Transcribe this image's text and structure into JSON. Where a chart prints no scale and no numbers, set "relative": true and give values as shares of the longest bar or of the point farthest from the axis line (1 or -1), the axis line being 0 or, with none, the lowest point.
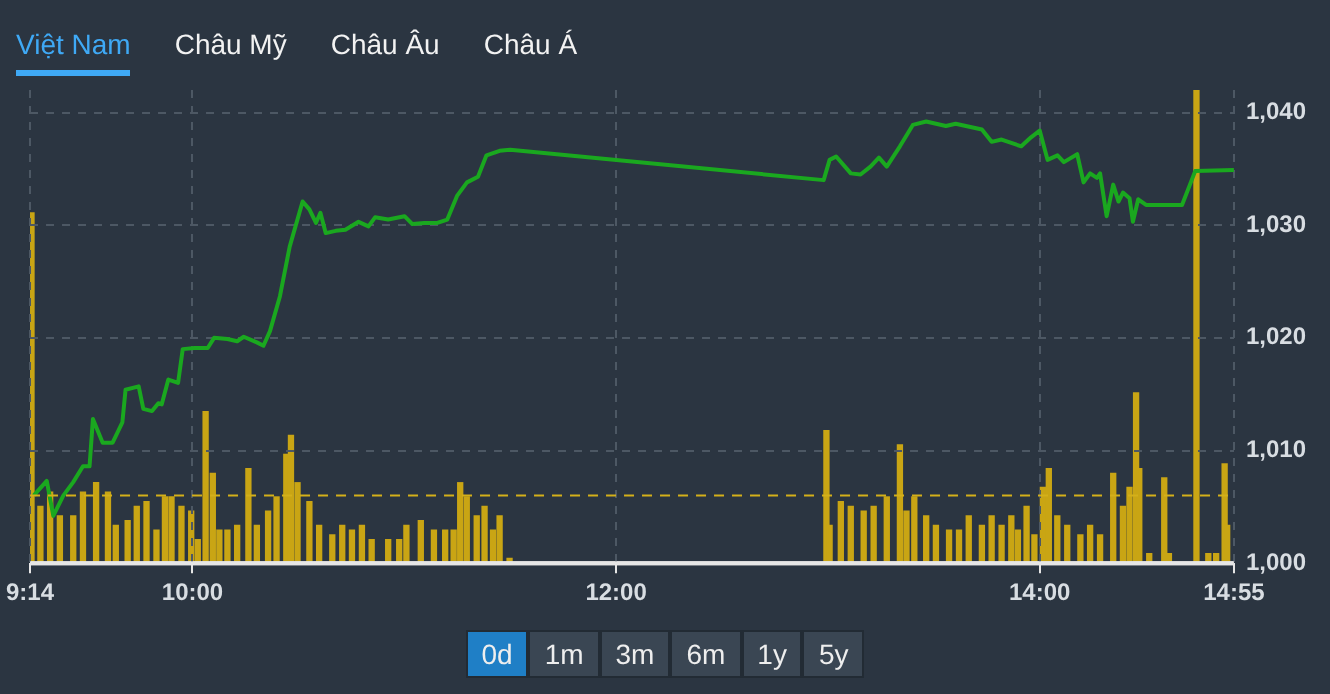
{
  "chart_data": [
    {
      "type": "line",
      "annotations": [
        "Việt Nam",
        "Châu Mỹ",
        "Châu Âu",
        "Châu Á",
        "0d",
        "1m",
        "3m",
        "6m",
        "1y",
        "5y"
      ],
      "xlim": [
        9.233,
        14.917
      ],
      "xticks": [
        {
          "value": 9.233,
          "label": "9:14"
        },
        {
          "value": 10,
          "label": "10:00"
        },
        {
          "value": 12,
          "label": "12:00"
        },
        {
          "value": 14,
          "label": "14:00"
        },
        {
          "value": 14.917,
          "label": "14:55"
        }
      ],
      "ylim": [
        1000,
        1042
      ],
      "yticks": [
        {
          "value": 1000,
          "label": "1,000"
        },
        {
          "value": 1010,
          "label": "1,010"
        },
        {
          "value": 1020,
          "label": "1,020"
        },
        {
          "value": 1030,
          "label": "1,030"
        },
        {
          "value": 1040,
          "label": "1,040"
        }
      ],
      "grid": true,
      "legend": false,
      "marker": "none",
      "line_style": "solid",
      "ref_lines": [
        {
          "axis": "y",
          "value": 1006,
          "color": "#d4b01a",
          "line_style": "dashed"
        }
      ],
      "series": [
        {
          "color": "#1aa81f",
          "x": [
            9.25,
            9.312,
            9.343,
            9.39,
            9.437,
            9.483,
            9.514,
            9.53,
            9.576,
            9.623,
            9.669,
            9.684,
            9.746,
            9.768,
            9.809,
            9.839,
            9.855,
            9.886,
            9.932,
            9.954,
            10.009,
            10.072,
            10.102,
            10.165,
            10.211,
            10.242,
            10.304,
            10.335,
            10.366,
            10.413,
            10.459,
            10.52,
            10.552,
            10.583,
            10.604,
            10.629,
            10.676,
            10.722,
            10.784,
            10.831,
            10.862,
            10.924,
            11.001,
            11.038,
            11.094,
            11.156,
            11.203,
            11.249,
            11.296,
            11.348,
            11.388,
            11.45,
            11.5,
            12.98,
            13.008,
            13.039,
            13.108,
            13.154,
            13.201,
            13.241,
            13.278,
            13.34,
            13.401,
            13.464,
            13.557,
            13.603,
            13.727,
            13.773,
            13.82,
            13.866,
            13.913,
            13.959,
            14,
            14.037,
            14.084,
            14.114,
            14.177,
            14.207,
            14.238,
            14.27,
            14.285,
            14.316,
            14.347,
            14.372,
            14.393,
            14.424,
            14.44,
            14.465,
            14.502,
            14.672,
            14.734,
            14.917
          ],
          "values": [
            1006,
            1007.3,
            1004.2,
            1006,
            1007.2,
            1008.6,
            1008.6,
            1012.8,
            1010.7,
            1010.7,
            1012.5,
            1015.4,
            1015.7,
            1013.7,
            1013.5,
            1014.2,
            1014.1,
            1016.3,
            1016,
            1019,
            1019.1,
            1019.1,
            1020,
            1019.9,
            1019.7,
            1020.1,
            1019.6,
            1019.3,
            1020.6,
            1023.7,
            1028.1,
            1032.1,
            1031.4,
            1030.2,
            1031.1,
            1029.3,
            1029.5,
            1029.6,
            1030.3,
            1029.9,
            1030.7,
            1030.5,
            1030.8,
            1030.1,
            1030.2,
            1030.2,
            1030.5,
            1032.6,
            1033.8,
            1034.3,
            1036.2,
            1036.6,
            1036.7,
            1034,
            1035.8,
            1036.1,
            1034.6,
            1034.5,
            1035.2,
            1036,
            1035.2,
            1037,
            1038.9,
            1039.2,
            1038.8,
            1039,
            1038.5,
            1037.4,
            1037.6,
            1037.3,
            1037,
            1037.8,
            1038.4,
            1035.8,
            1036.2,
            1035.6,
            1036.3,
            1033.8,
            1034.6,
            1034.2,
            1034.6,
            1030.8,
            1033.6,
            1032.1,
            1032.9,
            1032.4,
            1030.3,
            1032.3,
            1031.8,
            1031.8,
            1034.8,
            1034.9
          ]
        }
      ]
    },
    {
      "type": "bar",
      "relative": true,
      "color": "#c9a514",
      "xlim": [
        9.233,
        14.917
      ],
      "x": [
        9.24,
        9.282,
        9.328,
        9.374,
        9.437,
        9.483,
        9.545,
        9.601,
        9.638,
        9.694,
        9.737,
        9.783,
        9.83,
        9.87,
        9.901,
        9.948,
        9.994,
        10.025,
        10.062,
        10.096,
        10.127,
        10.165,
        10.211,
        10.264,
        10.304,
        10.357,
        10.397,
        10.443,
        10.465,
        10.496,
        10.552,
        10.598,
        10.66,
        10.707,
        10.753,
        10.8,
        10.846,
        10.924,
        10.976,
        11.01,
        11.078,
        11.14,
        11.193,
        11.233,
        11.264,
        11.295,
        11.342,
        11.379,
        11.419,
        11.45,
        11.497,
        12.993,
        13.008,
        13.061,
        13.108,
        13.169,
        13.216,
        13.278,
        13.34,
        13.371,
        13.408,
        13.464,
        13.51,
        13.572,
        13.619,
        13.665,
        13.727,
        13.773,
        13.82,
        13.866,
        13.897,
        13.938,
        13.975,
        14.015,
        14.043,
        14.083,
        14.13,
        14.192,
        14.238,
        14.285,
        14.347,
        14.393,
        14.424,
        14.455,
        14.47,
        14.517,
        14.588,
        14.61,
        14.74,
        14.796,
        14.833,
        14.873,
        14.885
      ],
      "values": [
        0.74,
        0.12,
        0.15,
        0.1,
        0.1,
        0.15,
        0.17,
        0.15,
        0.08,
        0.09,
        0.12,
        0.13,
        0.07,
        0.14,
        0.14,
        0.12,
        0.11,
        0.05,
        0.32,
        0.19,
        0.07,
        0.07,
        0.08,
        0.2,
        0.08,
        0.11,
        0.14,
        0.23,
        0.27,
        0.17,
        0.13,
        0.08,
        0.06,
        0.08,
        0.07,
        0.08,
        0.05,
        0.05,
        0.05,
        0.08,
        0.09,
        0.07,
        0.07,
        0.07,
        0.17,
        0.14,
        0.1,
        0.12,
        0.07,
        0.1,
        0.01,
        0.28,
        0.08,
        0.13,
        0.12,
        0.11,
        0.12,
        0.14,
        0.25,
        0.11,
        0.14,
        0.1,
        0.08,
        0.07,
        0.07,
        0.1,
        0.08,
        0.1,
        0.08,
        0.1,
        0.07,
        0.12,
        0.06,
        0.16,
        0.2,
        0.1,
        0.08,
        0.06,
        0.08,
        0.06,
        0.19,
        0.12,
        0.16,
        0.36,
        0.2,
        0.02,
        0.18,
        0.02,
        1,
        0.02,
        0.02,
        0.21,
        0.08
      ]
    }
  ]
}
